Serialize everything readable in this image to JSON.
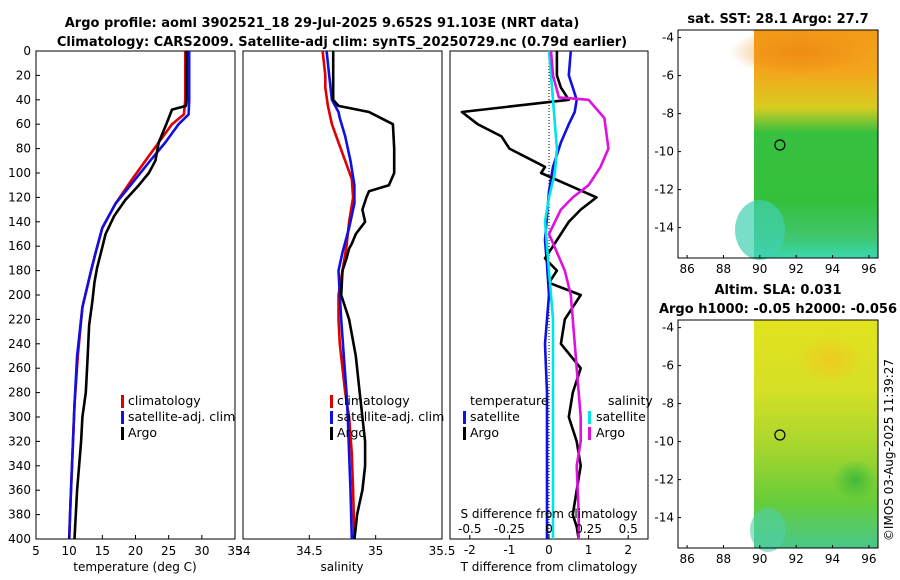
{
  "header": {
    "title_line1": "Argo profile: aoml 3902521_18 29-Jul-2025 9.652S 91.103E (NRT data)",
    "title_line2": "Climatology: CARS2009. Satellite-adj clim: synTS_20250729.nc (0.79d earlier)"
  },
  "colors": {
    "climatology": "#e00000",
    "satellite": "#1010e0",
    "argo": "#000000",
    "sat_salinity": "#00e5e5",
    "argo_salinity": "#e010e0"
  },
  "map_top": {
    "title": "sat. SST: 28.1 Argo: 27.7"
  },
  "map_bottom": {
    "title_line1": "Altim. SLA: 0.031",
    "title_line2": "Argo h1000: -0.05 h2000: -0.056"
  },
  "footer": {
    "stamp": "©IMOS 03-Aug-2025 11:39:27"
  },
  "chart_data": [
    {
      "type": "line",
      "name": "temperature-profile",
      "xlabel": "temperature (deg C)",
      "ylabel": "",
      "xlim": [
        5,
        35
      ],
      "ylim": [
        400,
        0
      ],
      "xticks": [
        "5",
        "10",
        "15",
        "20",
        "25",
        "30",
        "35"
      ],
      "yticks": [
        "0",
        "20",
        "40",
        "60",
        "80",
        "100",
        "120",
        "140",
        "160",
        "180",
        "200",
        "220",
        "240",
        "260",
        "280",
        "300",
        "320",
        "340",
        "360",
        "380",
        "400"
      ],
      "series": [
        {
          "name": "climatology",
          "color": "#e00000",
          "x": [
            27.5,
            27.5,
            27.5,
            27.3,
            25.5,
            23.5,
            21.5,
            19.5,
            17.0,
            15.0,
            14.0,
            13.3,
            12.0,
            11.3,
            10.8,
            10.5,
            10.2,
            10.0
          ],
          "y": [
            0,
            20,
            40,
            52,
            60,
            75,
            90,
            105,
            125,
            145,
            165,
            180,
            210,
            250,
            290,
            330,
            370,
            400
          ]
        },
        {
          "name": "satellite-adj. clim",
          "color": "#1010e0",
          "x": [
            28.1,
            28.1,
            28.1,
            28.0,
            26.5,
            24.5,
            22.2,
            20.0,
            17.0,
            15.0,
            14.0,
            13.3,
            12.0,
            11.2,
            10.8,
            10.5,
            10.2,
            10.0
          ],
          "y": [
            0,
            20,
            40,
            52,
            60,
            75,
            90,
            105,
            125,
            145,
            165,
            180,
            210,
            250,
            290,
            330,
            370,
            400
          ]
        },
        {
          "name": "Argo",
          "color": "#000000",
          "x": [
            27.7,
            27.7,
            27.7,
            27.6,
            25.5,
            25.0,
            24.5,
            23.5,
            23.0,
            22.0,
            20.5,
            18.5,
            16.8,
            15.5,
            14.8,
            14.2,
            13.8,
            13.5,
            13.0,
            12.8,
            12.5,
            12.0,
            11.8,
            11.5,
            11.2,
            11.0,
            10.8
          ],
          "y": [
            0,
            20,
            40,
            45,
            48,
            55,
            62,
            75,
            90,
            100,
            110,
            122,
            135,
            150,
            165,
            178,
            190,
            205,
            225,
            250,
            280,
            300,
            320,
            340,
            360,
            380,
            400
          ]
        }
      ]
    },
    {
      "type": "line",
      "name": "salinity-profile",
      "xlabel": "salinity",
      "ylabel": "",
      "xlim": [
        34,
        35.5
      ],
      "ylim": [
        400,
        0
      ],
      "xticks": [
        "34",
        "34.5",
        "35",
        "35.5"
      ],
      "series": [
        {
          "name": "climatology",
          "color": "#e00000",
          "x": [
            34.6,
            34.62,
            34.62,
            34.64,
            34.67,
            34.72,
            34.77,
            34.82,
            34.83,
            34.8,
            34.78,
            34.75,
            34.72,
            34.72,
            34.73,
            34.75,
            34.77,
            34.8,
            34.82,
            34.83,
            34.84
          ],
          "y": [
            0,
            20,
            30,
            45,
            60,
            75,
            90,
            105,
            120,
            140,
            160,
            180,
            200,
            220,
            240,
            260,
            280,
            300,
            330,
            360,
            400
          ]
        },
        {
          "name": "satellite-adj. clim",
          "color": "#1010e0",
          "x": [
            34.63,
            34.65,
            34.67,
            34.72,
            34.73,
            34.77,
            34.81,
            34.84,
            34.84,
            34.8,
            34.75,
            34.72,
            34.73,
            34.74,
            34.76,
            34.78,
            34.79,
            34.8,
            34.81,
            34.82
          ],
          "y": [
            0,
            20,
            40,
            50,
            55,
            70,
            90,
            110,
            125,
            145,
            165,
            180,
            200,
            220,
            250,
            280,
            300,
            330,
            360,
            400
          ]
        },
        {
          "name": "Argo",
          "color": "#000000",
          "x": [
            34.68,
            34.68,
            34.68,
            34.72,
            34.95,
            35.13,
            35.14,
            35.14,
            35.1,
            34.95,
            34.93,
            34.9,
            34.92,
            34.85,
            34.82,
            34.8,
            34.78,
            34.75,
            34.74,
            34.8,
            34.85,
            34.88,
            34.9,
            34.91,
            34.92,
            34.92,
            34.9,
            34.88,
            34.86,
            34.85,
            34.84
          ],
          "y": [
            0,
            20,
            40,
            45,
            50,
            60,
            80,
            100,
            110,
            115,
            120,
            130,
            140,
            150,
            158,
            162,
            170,
            180,
            200,
            220,
            250,
            280,
            300,
            310,
            320,
            340,
            360,
            370,
            380,
            390,
            400
          ]
        }
      ]
    },
    {
      "type": "line",
      "name": "difference-profile",
      "xlabel": "T difference from climatology",
      "xlabel_top": "S difference from climatology",
      "xlim": [
        -2.5,
        2.5
      ],
      "ylim": [
        400,
        0
      ],
      "xticks": [
        "-2",
        "-1",
        "0",
        "1",
        "2"
      ],
      "xticks_top": [
        "-0.5",
        "-0.25",
        "0",
        "0.25",
        "0.5"
      ],
      "legend_titles": [
        "temperature",
        "salinity"
      ],
      "series": [
        {
          "name": "T satellite",
          "color": "#1010e0",
          "x": [
            0.55,
            0.5,
            0.6,
            0.7,
            0.65,
            0.5,
            0.3,
            0.1,
            0.0,
            -0.05,
            -0.1,
            -0.05,
            0.0,
            -0.1,
            -0.05,
            -0.05,
            -0.05,
            -0.05,
            -0.05
          ],
          "y": [
            0,
            20,
            30,
            40,
            50,
            60,
            75,
            95,
            115,
            135,
            155,
            175,
            200,
            240,
            280,
            320,
            350,
            380,
            400
          ]
        },
        {
          "name": "T Argo",
          "color": "#000000",
          "x": [
            0.2,
            0.2,
            0.3,
            0.5,
            -2.2,
            -1.8,
            -1.2,
            -1.0,
            -0.4,
            -0.1,
            -0.2,
            0.5,
            1.2,
            0.8,
            0.5,
            0.3,
            0.1,
            -0.1,
            0.2,
            0.0,
            0.8,
            0.6,
            0.4,
            0.3,
            0.8,
            0.6,
            0.5,
            0.7,
            0.8,
            0.7,
            0.6,
            0.7,
            0.75
          ],
          "y": [
            0,
            20,
            30,
            40,
            50,
            60,
            70,
            80,
            90,
            95,
            100,
            110,
            120,
            130,
            140,
            150,
            160,
            170,
            180,
            190,
            200,
            210,
            220,
            240,
            260,
            280,
            300,
            320,
            340,
            360,
            380,
            390,
            400
          ]
        },
        {
          "name": "S satellite",
          "color": "#00e5e5",
          "x": [
            0.0,
            0.05,
            0.1,
            0.15,
            0.2,
            0.15,
            0.0,
            -0.1,
            -0.05,
            0.0,
            0.05,
            0.1,
            0.1,
            0.1,
            0.1,
            0.1,
            0.1,
            0.1
          ],
          "y": [
            0,
            20,
            40,
            60,
            80,
            100,
            120,
            140,
            160,
            180,
            200,
            220,
            260,
            300,
            330,
            350,
            380,
            400
          ]
        },
        {
          "name": "S Argo",
          "color": "#e010e0",
          "x": [
            0.05,
            0.1,
            0.25,
            1.0,
            1.4,
            1.5,
            1.3,
            1.0,
            0.6,
            0.3,
            0.0,
            0.4,
            0.55,
            0.6,
            0.7,
            0.8,
            0.8,
            0.7,
            0.75,
            0.75
          ],
          "y": [
            0,
            20,
            38,
            40,
            55,
            80,
            95,
            110,
            120,
            130,
            150,
            180,
            200,
            220,
            260,
            300,
            320,
            340,
            380,
            400
          ]
        }
      ]
    },
    {
      "type": "heatmap",
      "name": "sst-map",
      "title": "sat. SST: 28.1 Argo: 27.7",
      "xlim": [
        85.5,
        96.5
      ],
      "ylim": [
        -15.6,
        -3.6
      ],
      "xticks": [
        "86",
        "88",
        "90",
        "92",
        "94",
        "96"
      ],
      "yticks": [
        "-4",
        "-6",
        "-8",
        "-10",
        "-12",
        "-14"
      ],
      "argo_position": [
        91.103,
        -9.652
      ]
    },
    {
      "type": "heatmap",
      "name": "sla-map",
      "title": "Altim. SLA: 0.031",
      "xlim": [
        85.5,
        96.5
      ],
      "ylim": [
        -15.6,
        -3.6
      ],
      "xticks": [
        "86",
        "88",
        "90",
        "92",
        "94",
        "96"
      ],
      "yticks": [
        "-4",
        "-6",
        "-8",
        "-10",
        "-12",
        "-14"
      ],
      "argo_position": [
        91.103,
        -9.652
      ]
    }
  ],
  "legends": {
    "temperature_panel": [
      "climatology",
      "satellite-adj. clim",
      "Argo"
    ],
    "salinity_panel": [
      "climatology",
      "satellite-adj. clim",
      "Argo"
    ],
    "diff_temperature": [
      "satellite",
      "Argo"
    ],
    "diff_salinity": [
      "satellite",
      "Argo"
    ]
  }
}
